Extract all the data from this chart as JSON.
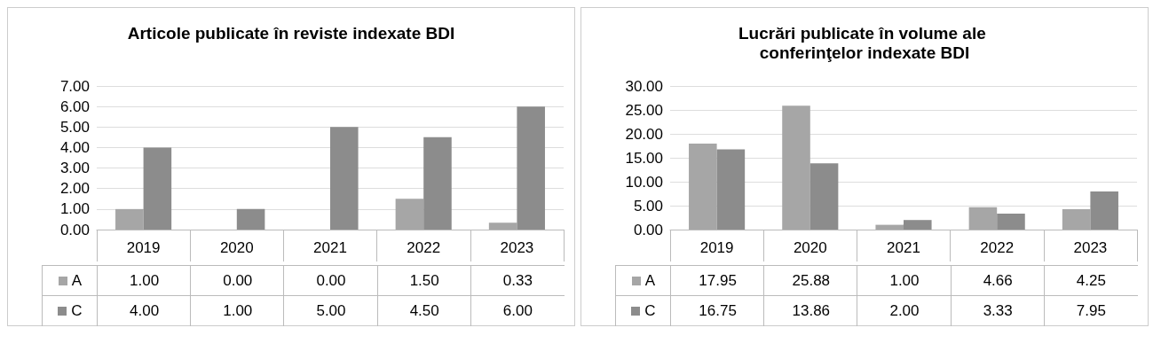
{
  "chart_data": [
    {
      "type": "bar",
      "title": "Articole publicate în reviste indexate BDI",
      "categories": [
        "2019",
        "2020",
        "2021",
        "2022",
        "2023"
      ],
      "series": [
        {
          "name": "A",
          "color": "#a6a6a6",
          "values": [
            1.0,
            0.0,
            0.0,
            1.5,
            0.33
          ],
          "value_labels": [
            "1.00",
            "0.00",
            "0.00",
            "1.50",
            "0.33"
          ]
        },
        {
          "name": "C",
          "color": "#8c8c8c",
          "values": [
            4.0,
            1.0,
            5.0,
            4.5,
            6.0
          ],
          "value_labels": [
            "4.00",
            "1.00",
            "5.00",
            "4.50",
            "6.00"
          ]
        }
      ],
      "legend": "bottom",
      "ylim": [
        0,
        7
      ],
      "yticks": [
        {
          "value": 0,
          "label": "0.00"
        },
        {
          "value": 1,
          "label": "1.00"
        },
        {
          "value": 2,
          "label": "2.00"
        },
        {
          "value": 3,
          "label": "3.00"
        },
        {
          "value": 4,
          "label": "4.00"
        },
        {
          "value": 5,
          "label": "5.00"
        },
        {
          "value": 6,
          "label": "6.00"
        },
        {
          "value": 7,
          "label": "7.00"
        }
      ],
      "grid": "y"
    },
    {
      "type": "bar",
      "title": "Lucrări publicate în volume ale conferinţelor indexate BDI",
      "categories": [
        "2019",
        "2020",
        "2021",
        "2022",
        "2023"
      ],
      "series": [
        {
          "name": "A",
          "color": "#a6a6a6",
          "values": [
            17.95,
            25.88,
            1.0,
            4.66,
            4.25
          ],
          "value_labels": [
            "17.95",
            "25.88",
            "1.00",
            "4.66",
            "4.25"
          ]
        },
        {
          "name": "C",
          "color": "#8c8c8c",
          "values": [
            16.75,
            13.86,
            2.0,
            3.33,
            7.95
          ],
          "value_labels": [
            "16.75",
            "13.86",
            "2.00",
            "3.33",
            "7.95"
          ]
        }
      ],
      "legend": "bottom",
      "ylim": [
        0,
        30
      ],
      "yticks": [
        {
          "value": 0,
          "label": "0.00"
        },
        {
          "value": 5,
          "label": "5.00"
        },
        {
          "value": 10,
          "label": "10.00"
        },
        {
          "value": 15,
          "label": "15.00"
        },
        {
          "value": 20,
          "label": "20.00"
        },
        {
          "value": 25,
          "label": "25.00"
        },
        {
          "value": 30,
          "label": "30.00"
        }
      ],
      "grid": "y"
    }
  ]
}
